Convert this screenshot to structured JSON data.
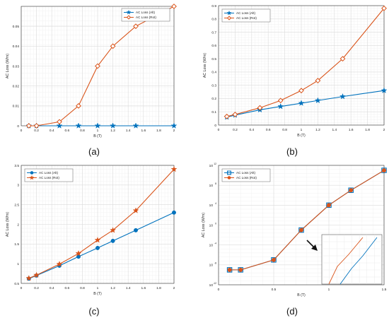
{
  "colors": {
    "blue": "#0072BD",
    "orange": "#D95319",
    "grid": "#dcdcdc",
    "axis": "#333333",
    "text": "#222222"
  },
  "chart_data": [
    {
      "panel_label": "(a)",
      "type": "line",
      "xlabel": "B (T)",
      "ylabel": "AC Loss (W/m)",
      "xlim": [
        0,
        2
      ],
      "ylim": [
        0,
        0.06
      ],
      "yscale": "linear",
      "xticks": [
        0,
        0.2,
        0.4,
        0.6,
        0.8,
        1,
        1.2,
        1.4,
        1.6,
        1.8,
        2
      ],
      "xticklabels": [
        "0",
        "0.2",
        "0.4",
        "0.6",
        "0.8",
        "1",
        "1.2",
        "1.4",
        "1.6",
        "1.8",
        "2"
      ],
      "yticks": [
        0,
        0.01,
        0.02,
        0.03,
        0.04,
        0.05
      ],
      "yticklabels": [
        "0",
        "0.01",
        "0.02",
        "0.03",
        "0.04",
        "0.05"
      ],
      "grid": true,
      "legend_position": "top-right",
      "series": [
        {
          "name": "AC Loss (Alt)",
          "color": "#0072BD",
          "marker": "star",
          "x": [
            0.1,
            0.2,
            0.5,
            0.75,
            1.0,
            1.2,
            1.5,
            2.0
          ],
          "y": [
            0,
            0,
            0,
            0,
            0,
            0,
            0,
            0
          ]
        },
        {
          "name": "AC Loss (Rot)",
          "color": "#D95319",
          "marker": "diamond",
          "x": [
            0.1,
            0.2,
            0.5,
            0.75,
            1.0,
            1.2,
            1.5,
            2.0
          ],
          "y": [
            0,
            0,
            0.002,
            0.01,
            0.03,
            0.04,
            0.05,
            0.06
          ]
        }
      ]
    },
    {
      "panel_label": "(b)",
      "type": "line",
      "xlabel": "B (T)",
      "ylabel": "AC Loss (W/m)",
      "xlim": [
        0,
        2
      ],
      "ylim": [
        0,
        0.9
      ],
      "yscale": "linear",
      "xticks": [
        0,
        0.2,
        0.4,
        0.6,
        0.8,
        1,
        1.2,
        1.4,
        1.6,
        1.8,
        2
      ],
      "xticklabels": [
        "0",
        "0.2",
        "0.4",
        "0.6",
        "0.8",
        "1",
        "1.2",
        "1.4",
        "1.6",
        "1.8",
        "2"
      ],
      "yticks": [
        0,
        0.1,
        0.2,
        0.3,
        0.4,
        0.5,
        0.6,
        0.7,
        0.8,
        0.9
      ],
      "yticklabels": [
        "0",
        "0.1",
        "0.2",
        "0.3",
        "0.4",
        "0.5",
        "0.6",
        "0.7",
        "0.8",
        "0.9"
      ],
      "grid": true,
      "legend_position": "top-left",
      "series": [
        {
          "name": "AC Loss (Alt)",
          "color": "#0072BD",
          "marker": "star",
          "x": [
            0.1,
            0.2,
            0.5,
            0.75,
            1.0,
            1.2,
            1.5,
            2.0
          ],
          "y": [
            0.06,
            0.075,
            0.115,
            0.14,
            0.165,
            0.185,
            0.215,
            0.26
          ]
        },
        {
          "name": "AC Loss (Rot)",
          "color": "#D95319",
          "marker": "diamond",
          "x": [
            0.1,
            0.2,
            0.5,
            0.75,
            1.0,
            1.2,
            1.5,
            2.0
          ],
          "y": [
            0.065,
            0.08,
            0.13,
            0.185,
            0.26,
            0.335,
            0.5,
            0.88
          ]
        }
      ]
    },
    {
      "panel_label": "(c)",
      "type": "line",
      "xlabel": "B (T)",
      "ylabel": "AC Loss (W/m)",
      "xlim": [
        0,
        2
      ],
      "ylim": [
        0.5,
        3.5
      ],
      "yscale": "linear",
      "xticks": [
        0,
        0.2,
        0.4,
        0.6,
        0.8,
        1,
        1.2,
        1.4,
        1.6,
        1.8,
        2
      ],
      "xticklabels": [
        "0",
        "0.2",
        "0.4",
        "0.6",
        "0.8",
        "1",
        "1.2",
        "1.4",
        "1.6",
        "1.8",
        "2"
      ],
      "yticks": [
        0.5,
        1,
        1.5,
        2,
        2.5,
        3,
        3.5
      ],
      "yticklabels": [
        "0.5",
        "1",
        "1.5",
        "2",
        "2.5",
        "3",
        "3.5"
      ],
      "grid": true,
      "legend_position": "top-left",
      "series": [
        {
          "name": "AC Loss (Alt)",
          "color": "#0072BD",
          "marker": "circle",
          "x": [
            0.1,
            0.2,
            0.5,
            0.75,
            1.0,
            1.2,
            1.5,
            2.0
          ],
          "y": [
            0.62,
            0.7,
            0.95,
            1.18,
            1.4,
            1.58,
            1.85,
            2.3
          ]
        },
        {
          "name": "AC Loss (Rot)",
          "color": "#D95319",
          "marker": "star",
          "x": [
            0.1,
            0.2,
            0.5,
            0.75,
            1.0,
            1.2,
            1.5,
            2.0
          ],
          "y": [
            0.63,
            0.71,
            0.99,
            1.26,
            1.6,
            1.85,
            2.35,
            3.4
          ]
        }
      ]
    },
    {
      "panel_label": "(d)",
      "type": "line",
      "xlabel": "B (T)",
      "ylabel": "AC Loss (W/m)",
      "xlim": [
        0,
        1.5
      ],
      "ylim": [
        1e-12,
        1000000000000.0
      ],
      "yscale": "log",
      "xticks": [
        0,
        0.5,
        1,
        1.5
      ],
      "xticklabels": [
        "0",
        "0.5",
        "1",
        "1.5"
      ],
      "yticks": [
        1e-12,
        1e-08,
        0.0001,
        1,
        10000.0,
        100000000.0,
        1000000000000.0
      ],
      "yticklabels": [
        "10",
        "10",
        "10",
        "10",
        "10",
        "10",
        "10"
      ],
      "ytick_exponents": [
        "-12",
        "-8",
        "-4",
        "0",
        "4",
        "8",
        "12"
      ],
      "grid": true,
      "legend_position": "top-left",
      "series": [
        {
          "name": "AC Loss (Alt)",
          "color": "#0072BD",
          "marker": "square",
          "x": [
            0.1,
            0.2,
            0.5,
            0.75,
            1.0,
            1.2,
            1.5
          ],
          "y": [
            1e-09,
            1e-09,
            1e-07,
            0.1,
            10000.0,
            10000000.0,
            100000000000.0
          ]
        },
        {
          "name": "AC Loss (Rot)",
          "color": "#D95319",
          "marker": "circle",
          "x": [
            0.1,
            0.2,
            0.5,
            0.75,
            1.0,
            1.2,
            1.5
          ],
          "y": [
            1e-09,
            1e-09,
            1e-07,
            0.1,
            10000.0,
            10000000.0,
            100000000000.0
          ]
        }
      ]
    }
  ]
}
